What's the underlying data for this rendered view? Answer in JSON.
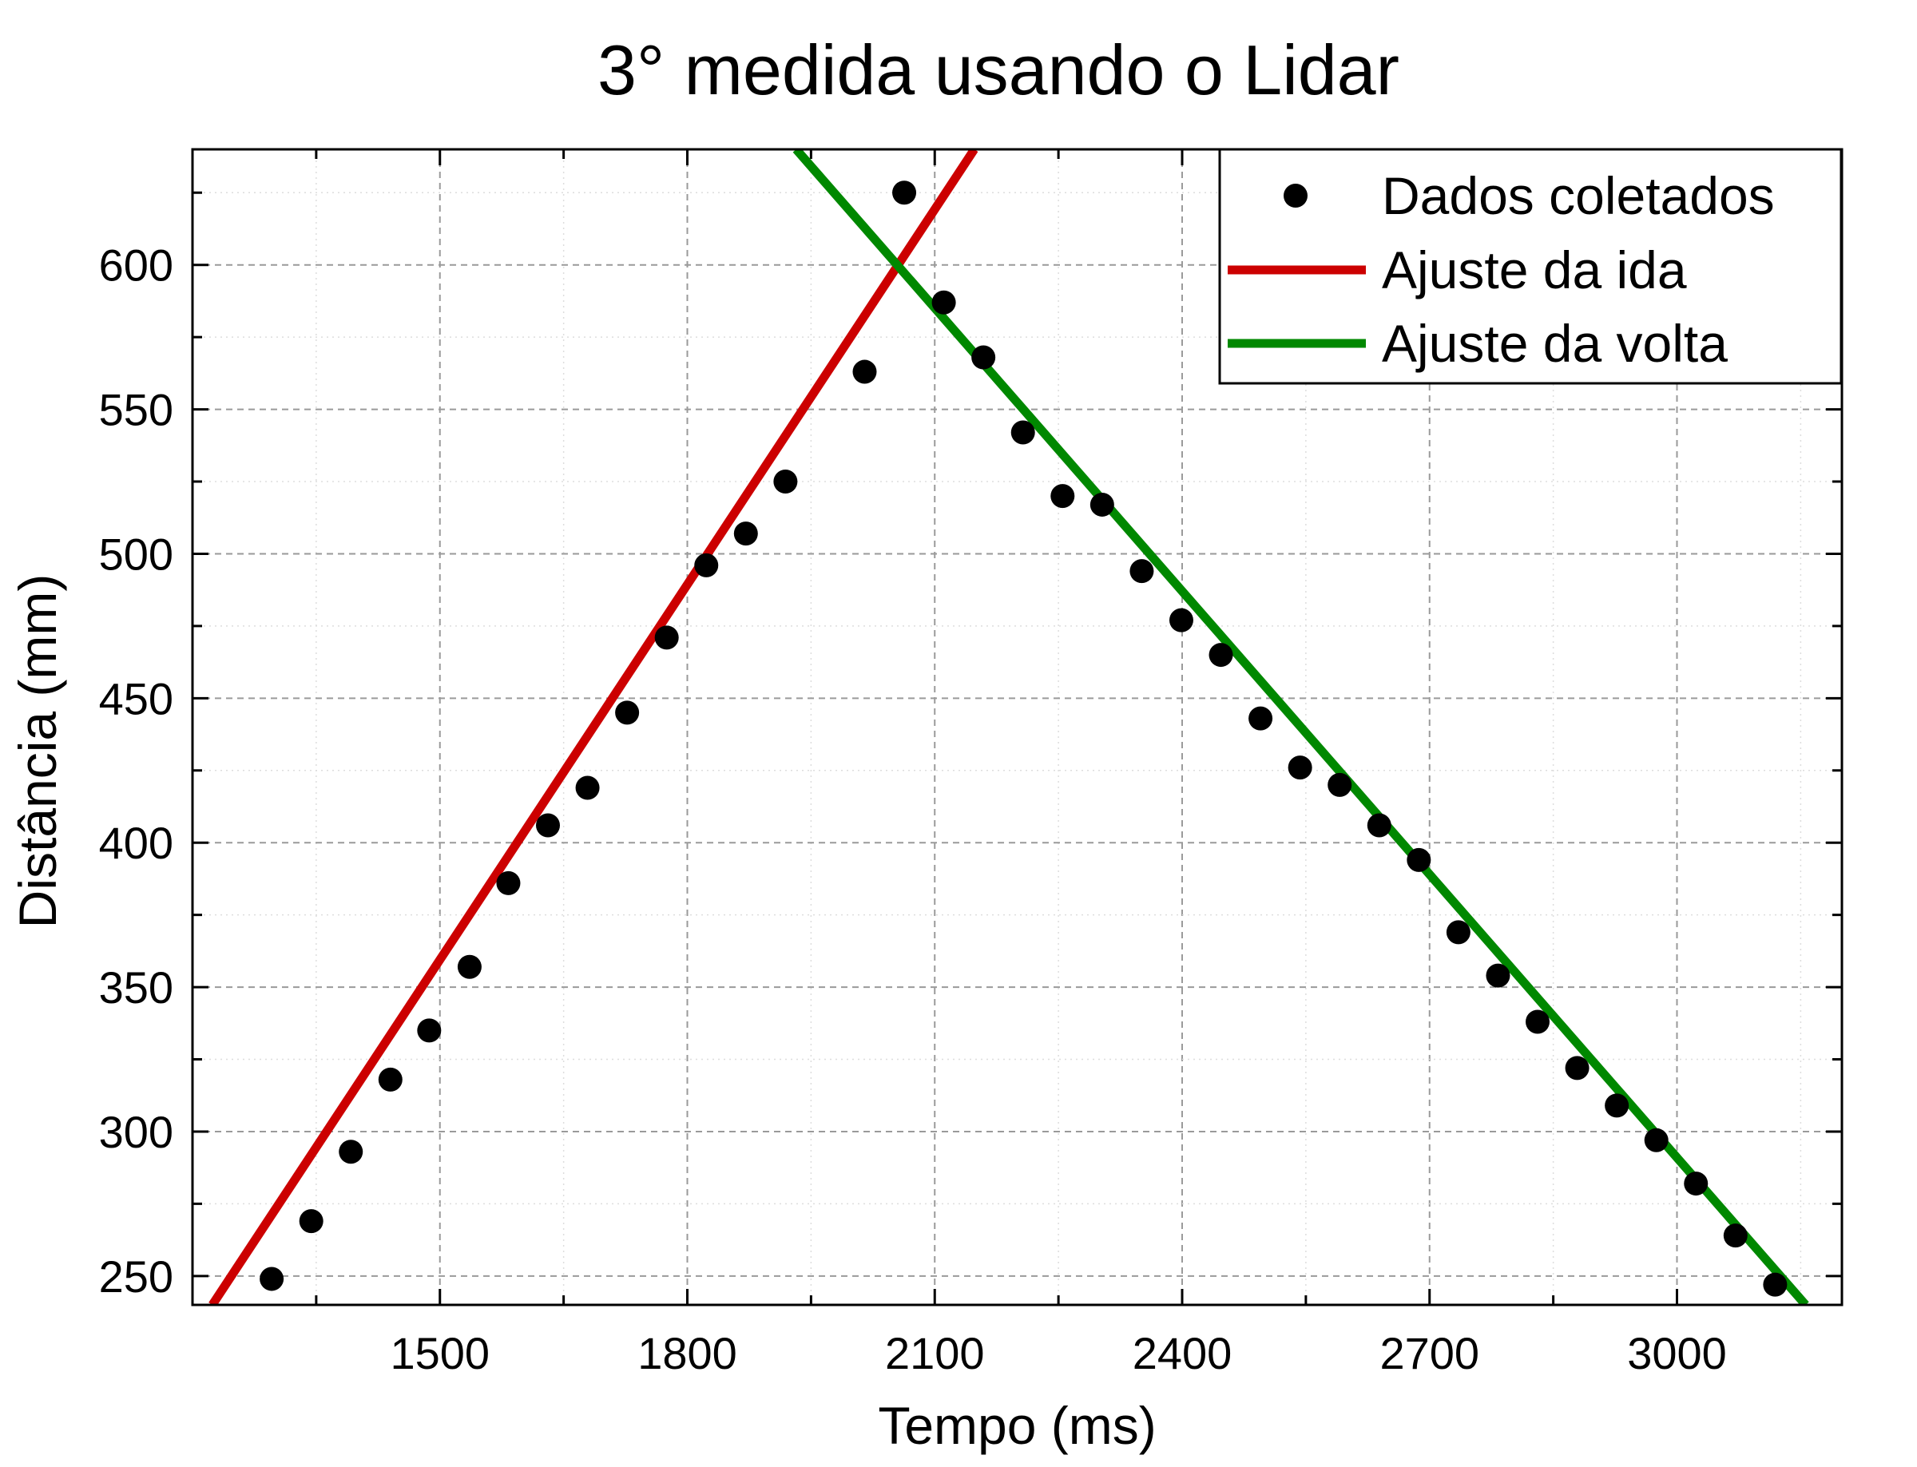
{
  "chart_data": {
    "type": "scatter",
    "title": "3° medida usando o Lidar",
    "xlabel": "Tempo (ms)",
    "ylabel": "Distância (mm)",
    "xlim": [
      1200,
      3200
    ],
    "ylim": [
      240,
      640
    ],
    "x_ticks": [
      1500,
      1800,
      2100,
      2400,
      2700,
      3000
    ],
    "y_ticks": [
      250,
      300,
      350,
      400,
      450,
      500,
      550,
      600
    ],
    "grid": true,
    "legend_position": "top-right",
    "colors": {
      "points": "#000000",
      "ida": "#cc0000",
      "volta": "#008800"
    },
    "series": [
      {
        "name": "Dados coletados",
        "kind": "points",
        "points": [
          [
            1296,
            249
          ],
          [
            1344,
            269
          ],
          [
            1392,
            293
          ],
          [
            1440,
            318
          ],
          [
            1487,
            335
          ],
          [
            1536,
            357
          ],
          [
            1583,
            386
          ],
          [
            1631,
            406
          ],
          [
            1679,
            419
          ],
          [
            1727,
            445
          ],
          [
            1775,
            471
          ],
          [
            1823,
            496
          ],
          [
            1871,
            507
          ],
          [
            1919,
            525
          ],
          [
            2015,
            563
          ],
          [
            2063,
            625
          ],
          [
            2111,
            587
          ],
          [
            2159,
            568
          ],
          [
            2207,
            542
          ],
          [
            2255,
            520
          ],
          [
            2303,
            517
          ],
          [
            2351,
            494
          ],
          [
            2399,
            477
          ],
          [
            2447,
            465
          ],
          [
            2495,
            443
          ],
          [
            2543,
            426
          ],
          [
            2591,
            420
          ],
          [
            2639,
            406
          ],
          [
            2687,
            394
          ],
          [
            2735,
            369
          ],
          [
            2783,
            354
          ],
          [
            2831,
            338
          ],
          [
            2879,
            322
          ],
          [
            2927,
            309
          ],
          [
            2975,
            297
          ],
          [
            3023,
            282
          ],
          [
            3071,
            264
          ],
          [
            3119,
            247
          ]
        ]
      },
      {
        "name": "Ajuste da ida",
        "kind": "line",
        "points": [
          [
            1224,
            240
          ],
          [
            2148,
            640
          ]
        ]
      },
      {
        "name": "Ajuste da volta",
        "kind": "line",
        "points": [
          [
            1932,
            640
          ],
          [
            3156,
            240
          ]
        ]
      }
    ]
  }
}
